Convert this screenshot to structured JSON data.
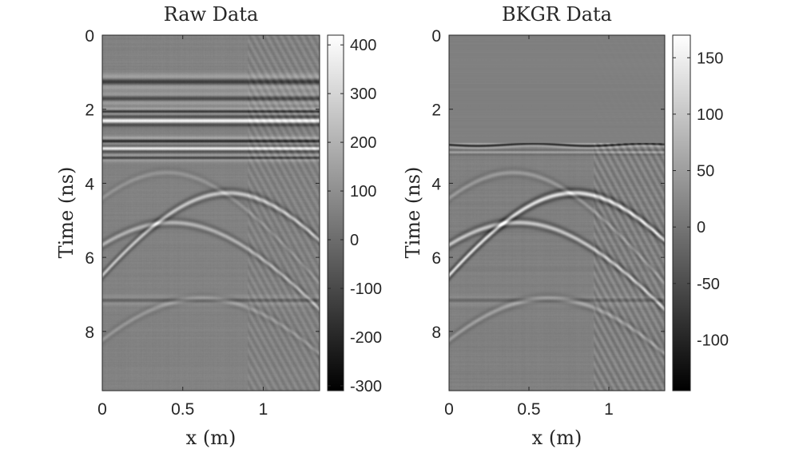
{
  "chart_data": [
    {
      "type": "heatmap",
      "title": "Raw Data",
      "xlabel": "x (m)",
      "ylabel": "Time (ns)",
      "xlim": [
        0,
        1.35
      ],
      "ylim": [
        0,
        9.6
      ],
      "y_reversed": true,
      "xticks": [
        0,
        0.5,
        1
      ],
      "xtick_labels": [
        "0",
        "0.5",
        "1"
      ],
      "yticks": [
        0,
        2,
        4,
        6,
        8
      ],
      "ytick_labels": [
        "0",
        "2",
        "4",
        "6",
        "8"
      ],
      "colormap": "gray",
      "clim": [
        -310,
        420
      ],
      "colorbar_ticks": [
        400,
        300,
        200,
        100,
        0,
        -100,
        -200,
        -300
      ],
      "colorbar_tick_labels": [
        "400",
        "300",
        "200",
        "100",
        "0",
        "-100",
        "-200",
        "-300"
      ]
    },
    {
      "type": "heatmap",
      "title": "BKGR Data",
      "xlabel": "x (m)",
      "ylabel": "Time (ns)",
      "xlim": [
        0,
        1.35
      ],
      "ylim": [
        0,
        9.6
      ],
      "y_reversed": true,
      "xticks": [
        0,
        0.5,
        1
      ],
      "xtick_labels": [
        "0",
        "0.5",
        "1"
      ],
      "yticks": [
        0,
        2,
        4,
        6,
        8
      ],
      "ytick_labels": [
        "0",
        "2",
        "4",
        "6",
        "8"
      ],
      "colormap": "gray",
      "clim": [
        -145,
        170
      ],
      "colorbar_ticks": [
        150,
        100,
        50,
        0,
        -50,
        -100
      ],
      "colorbar_tick_labels": [
        "150",
        "100",
        "50",
        "0",
        "-50",
        "-100"
      ]
    }
  ]
}
